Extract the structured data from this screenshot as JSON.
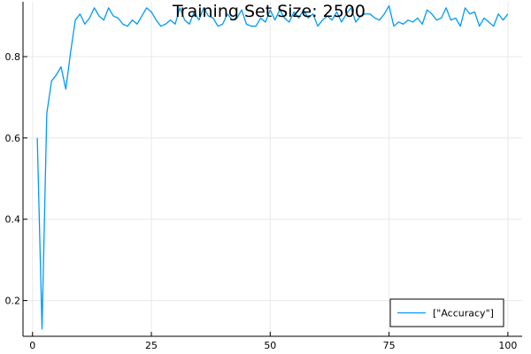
{
  "chart_data": {
    "type": "line",
    "title": "Training Set Size: 2500",
    "xlabel": "",
    "ylabel": "",
    "xlim": [
      -2,
      103
    ],
    "ylim": [
      0.112,
      0.935
    ],
    "x_ticks": [
      0,
      25,
      50,
      75,
      100
    ],
    "y_ticks": [
      0.2,
      0.4,
      0.6,
      0.8
    ],
    "y_tick_labels": [
      "0.2",
      "0.4",
      "0.6",
      "0.8"
    ],
    "grid": true,
    "legend_position": "bottom-right",
    "colors": {
      "series": "#009af9",
      "grid": "#e8e8e8",
      "axis": "#000000"
    },
    "series": [
      {
        "name": "[\"Accuracy\"]",
        "x": [
          1,
          2,
          3,
          4,
          5,
          6,
          7,
          8,
          9,
          10,
          11,
          12,
          13,
          14,
          15,
          16,
          17,
          18,
          19,
          20,
          21,
          22,
          23,
          24,
          25,
          26,
          27,
          28,
          29,
          30,
          31,
          32,
          33,
          34,
          35,
          36,
          37,
          38,
          39,
          40,
          41,
          42,
          43,
          44,
          45,
          46,
          47,
          48,
          49,
          50,
          51,
          52,
          53,
          54,
          55,
          56,
          57,
          58,
          59,
          60,
          61,
          62,
          63,
          64,
          65,
          66,
          67,
          68,
          69,
          70,
          71,
          72,
          73,
          74,
          75,
          76,
          77,
          78,
          79,
          80,
          81,
          82,
          83,
          84,
          85,
          86,
          87,
          88,
          89,
          90,
          91,
          92,
          93,
          94,
          95,
          96,
          97,
          98,
          99,
          100
        ],
        "values": [
          0.6,
          0.13,
          0.66,
          0.74,
          0.755,
          0.775,
          0.72,
          0.81,
          0.89,
          0.905,
          0.88,
          0.895,
          0.92,
          0.9,
          0.89,
          0.92,
          0.9,
          0.895,
          0.88,
          0.875,
          0.89,
          0.88,
          0.9,
          0.92,
          0.91,
          0.89,
          0.875,
          0.88,
          0.89,
          0.88,
          0.92,
          0.89,
          0.88,
          0.91,
          0.89,
          0.92,
          0.9,
          0.895,
          0.875,
          0.88,
          0.905,
          0.89,
          0.895,
          0.915,
          0.88,
          0.875,
          0.875,
          0.895,
          0.885,
          0.915,
          0.89,
          0.915,
          0.895,
          0.885,
          0.91,
          0.895,
          0.915,
          0.895,
          0.905,
          0.875,
          0.89,
          0.9,
          0.89,
          0.91,
          0.885,
          0.905,
          0.92,
          0.885,
          0.9,
          0.905,
          0.905,
          0.895,
          0.89,
          0.905,
          0.925,
          0.875,
          0.885,
          0.88,
          0.89,
          0.885,
          0.895,
          0.88,
          0.915,
          0.905,
          0.89,
          0.895,
          0.92,
          0.89,
          0.895,
          0.875,
          0.92,
          0.905,
          0.91,
          0.875,
          0.895,
          0.885,
          0.875,
          0.905,
          0.89,
          0.905
        ]
      }
    ]
  }
}
